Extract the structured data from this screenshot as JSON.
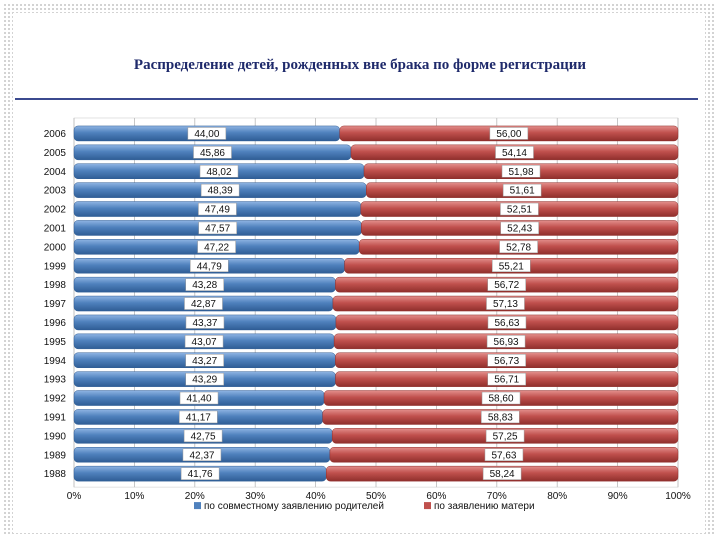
{
  "title": "Распределение детей, рожденных вне брака по форме регистрации",
  "chart_data": {
    "type": "bar",
    "orientation": "horizontal",
    "stacked": "percent",
    "title": "Распределение детей, рожденных вне брака по форме регистрации",
    "categories": [
      "2006",
      "2005",
      "2004",
      "2003",
      "2002",
      "2001",
      "2000",
      "1999",
      "1998",
      "1997",
      "1996",
      "1995",
      "1994",
      "1993",
      "1992",
      "1991",
      "1990",
      "1989",
      "1988"
    ],
    "series": [
      {
        "name": "по совместному заявлению родителей",
        "color": "#4f81bd",
        "values": [
          44.0,
          45.86,
          48.02,
          48.39,
          47.49,
          47.57,
          47.22,
          44.79,
          43.28,
          42.87,
          43.37,
          43.07,
          43.27,
          43.29,
          41.4,
          41.17,
          42.75,
          42.37,
          41.76
        ],
        "labels": [
          "44,00",
          "45,86",
          "48,02",
          "48,39",
          "47,49",
          "47,57",
          "47,22",
          "44,79",
          "43,28",
          "42,87",
          "43,37",
          "43,07",
          "43,27",
          "43,29",
          "41,40",
          "41,17",
          "42,75",
          "42,37",
          "41,76"
        ]
      },
      {
        "name": "по заявлению матери",
        "color": "#c0504d",
        "values": [
          56.0,
          54.14,
          51.98,
          51.61,
          52.51,
          52.43,
          52.78,
          55.21,
          56.72,
          57.13,
          56.63,
          56.93,
          56.73,
          56.71,
          58.6,
          58.83,
          57.25,
          57.63,
          58.24
        ],
        "labels": [
          "56,00",
          "54,14",
          "51,98",
          "51,61",
          "52,51",
          "52,43",
          "52,78",
          "55,21",
          "56,72",
          "57,13",
          "56,63",
          "56,93",
          "56,73",
          "56,71",
          "58,60",
          "58,83",
          "57,25",
          "57,63",
          "58,24"
        ]
      }
    ],
    "xlim": [
      0,
      100
    ],
    "x_ticks": [
      "0%",
      "10%",
      "20%",
      "30%",
      "40%",
      "50%",
      "60%",
      "70%",
      "80%",
      "90%",
      "100%"
    ],
    "grid": true,
    "legend": "bottom"
  }
}
